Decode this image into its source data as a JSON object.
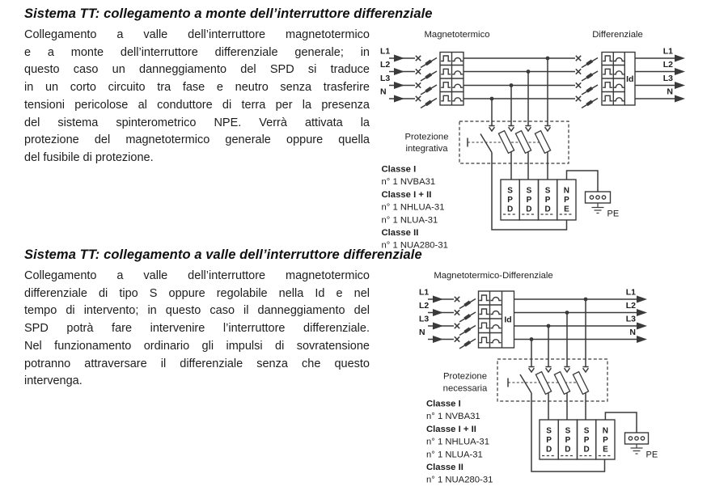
{
  "page": {
    "background": "#ffffff",
    "text_color": "#1d1d1d",
    "diagram_stroke_color": "#3a3a3a"
  },
  "section1": {
    "heading": "Sistema TT: collegamento a monte dell’interruttore differenziale",
    "body_lines": [
      "Collegamento a valle dell’interruttore magnetotermico",
      "e a monte dell’interruttore differenziale generale; in",
      "questo caso un danneggiamento del SPD si traduce",
      "in un corto circuito tra fase e neutro senza trasferire",
      "tensioni pericolose al conduttore di terra per la presenza",
      "del sistema spinterometrico NPE. Verrà attivata la",
      "protezione del magnetotermico generale oppure quella",
      "del fusibile di protezione."
    ],
    "diagram": {
      "label_breaker": "Magnetotermico",
      "label_differential": "Differenziale",
      "lines_in": [
        "L1",
        "L2",
        "L3",
        "N"
      ],
      "lines_out": [
        "L1",
        "L2",
        "L3",
        "N"
      ],
      "differential_current": "Id",
      "protection_line1": "Protezione",
      "protection_line2": "integrativa",
      "modules": [
        "SPD",
        "SPD",
        "SPD",
        "NPE"
      ],
      "earth_label": "PE",
      "class_list": [
        "Classe I",
        "n° 1 NVBA31",
        "Classe I + II",
        "n° 1 NHLUA-31",
        "n° 1 NLUA-31",
        "Classe II",
        "n° 1 NUA280-31"
      ]
    }
  },
  "section2": {
    "heading": "Sistema TT: collegamento a valle dell’interruttore differenziale",
    "body_lines": [
      "Collegamento a valle dell’interruttore magnetotermico",
      "differenziale di tipo S oppure regolabile nella Id e nel",
      "tempo di intervento; in questo caso il danneggiamento del",
      "SPD potrà fare intervenire l’interruttore differenziale.",
      "Nel funzionamento ordinario gli impulsi di sovratensione",
      "potranno attraversare il differenziale senza che questo",
      "intervenga."
    ],
    "diagram": {
      "label_breaker": "Magnetotermico-Differenziale",
      "lines_in": [
        "L1",
        "L2",
        "L3",
        "N"
      ],
      "lines_out": [
        "L1",
        "L2",
        "L3",
        "N"
      ],
      "differential_current": "Id",
      "protection_line1": "Protezione",
      "protection_line2": "necessaria",
      "modules": [
        "SPD",
        "SPD",
        "SPD",
        "NPE"
      ],
      "earth_label": "PE",
      "class_list": [
        "Classe I",
        "n° 1 NVBA31",
        "Classe I + II",
        "n° 1 NHLUA-31",
        "n° 1 NLUA-31",
        "Classe II",
        "n° 1 NUA280-31"
      ]
    }
  }
}
